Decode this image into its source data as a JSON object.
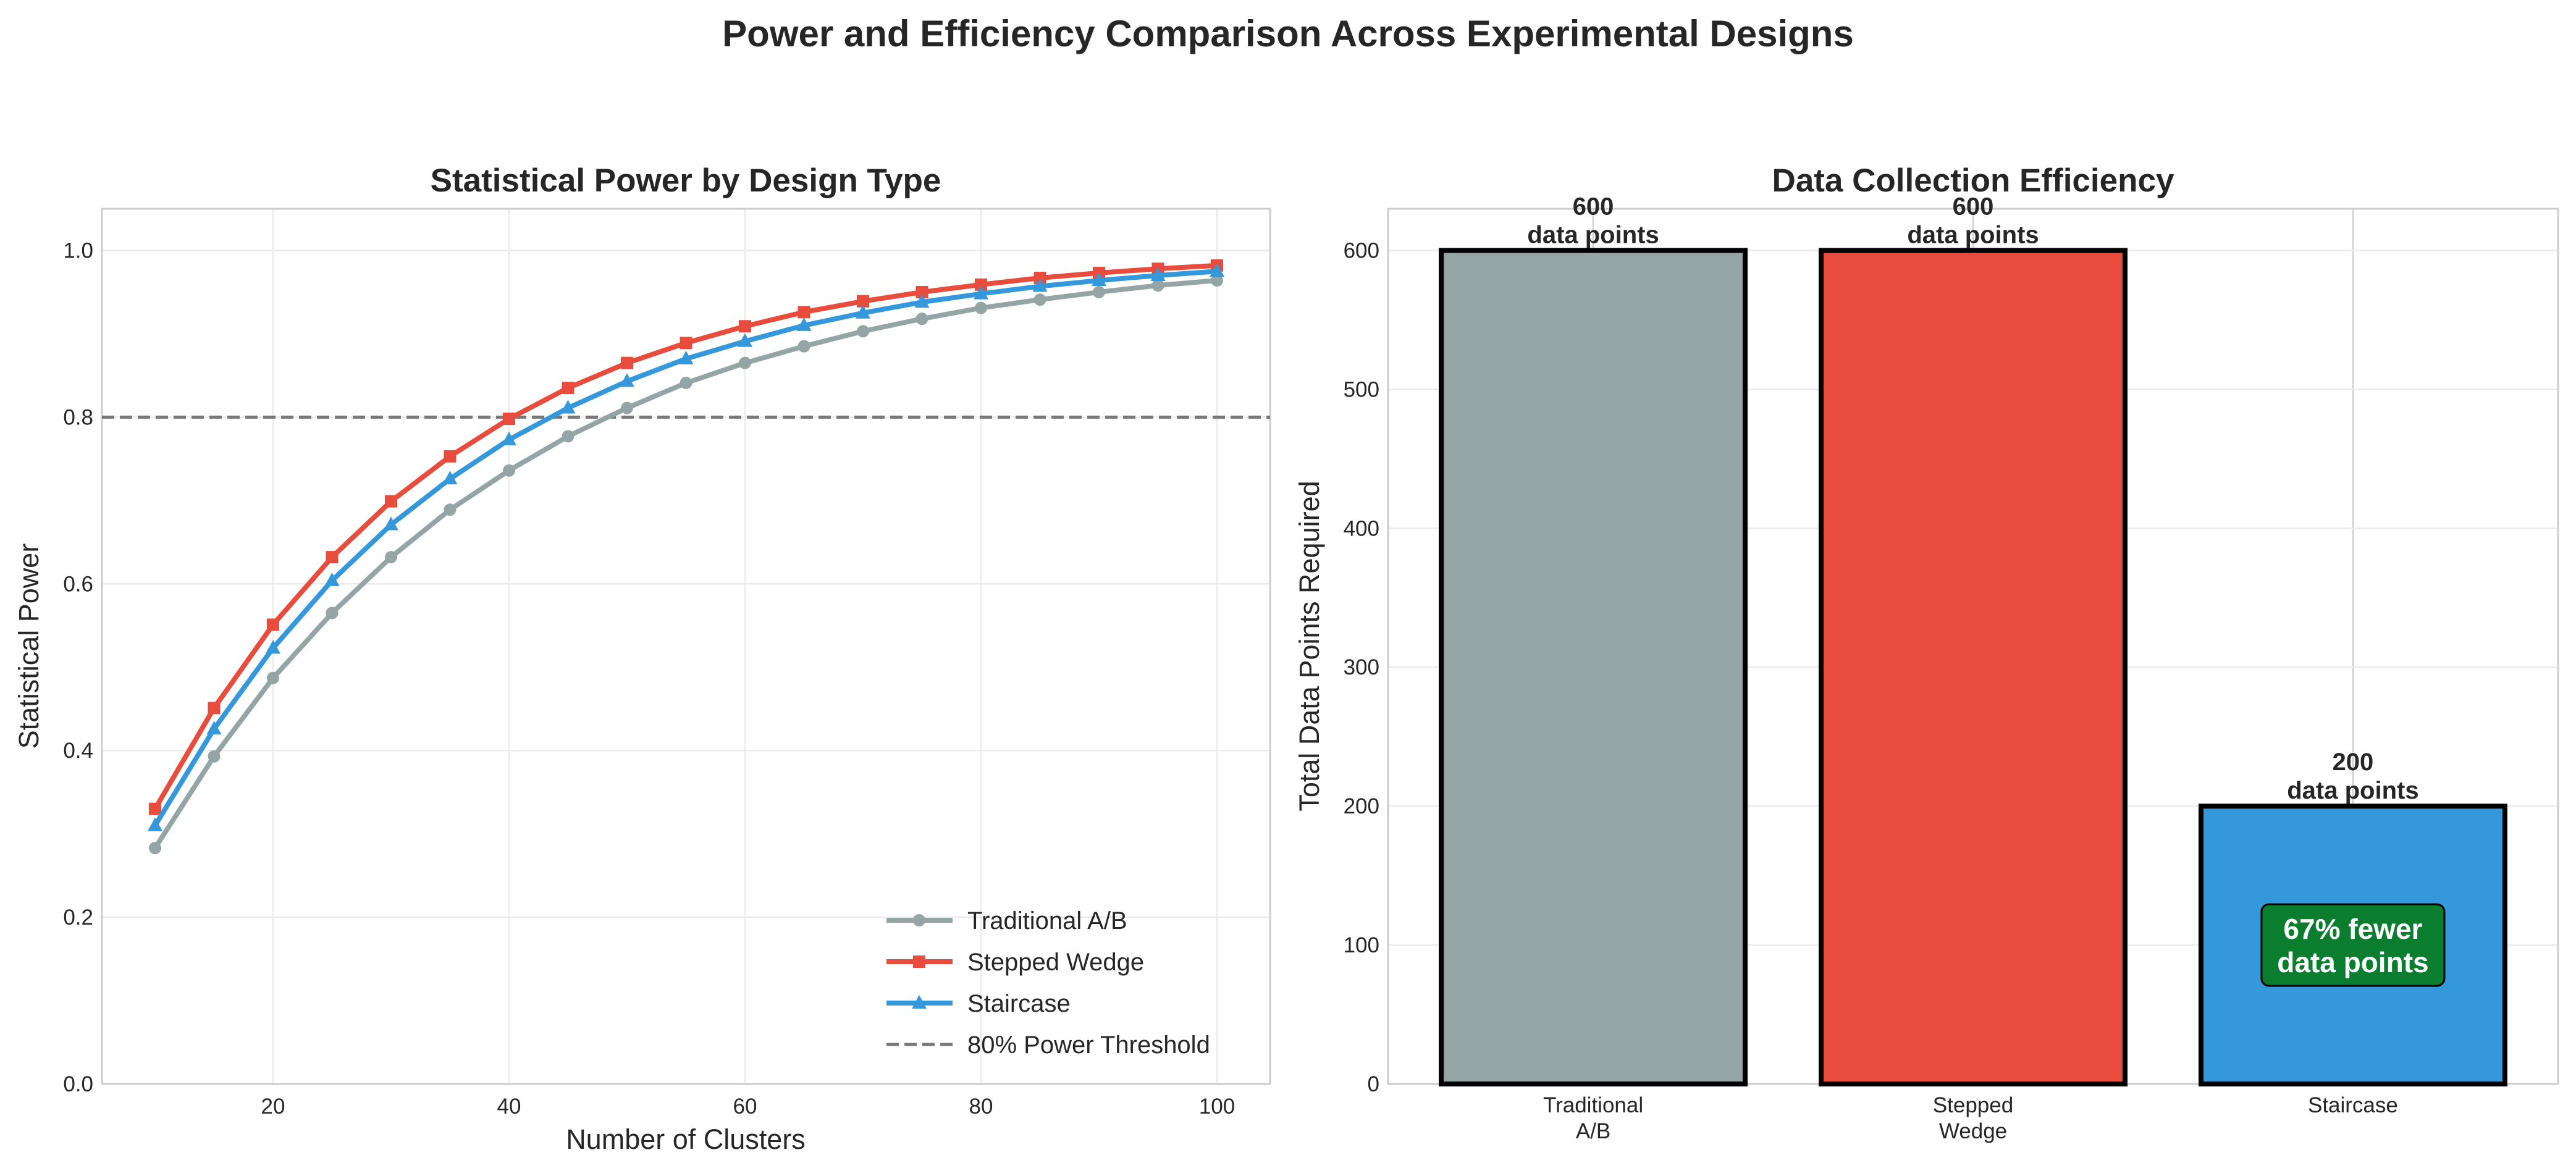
{
  "suptitle": "Power and Efficiency Comparison Across Experimental Designs",
  "chart_data": [
    {
      "type": "line",
      "title": "Statistical Power by Design Type",
      "xlabel": "Number of Clusters",
      "ylabel": "Statistical Power",
      "xlim": [
        5.5,
        104.5
      ],
      "ylim": [
        0,
        1.05
      ],
      "xticks": [
        20,
        40,
        60,
        80,
        100
      ],
      "yticks": [
        0.0,
        0.2,
        0.4,
        0.6,
        0.8,
        1.0
      ],
      "ytick_labels": [
        "0.0",
        "0.2",
        "0.4",
        "0.6",
        "0.8",
        "1.0"
      ],
      "grid": true,
      "legend_position": "lower right",
      "x": [
        10,
        15,
        20,
        25,
        30,
        35,
        40,
        45,
        50,
        55,
        60,
        65,
        70,
        75,
        80,
        85,
        90,
        95,
        100
      ],
      "series": [
        {
          "name": "Traditional A/B",
          "color": "#95a5a6",
          "marker": "circle",
          "values": [
            0.283,
            0.393,
            0.487,
            0.565,
            0.632,
            0.689,
            0.736,
            0.777,
            0.811,
            0.841,
            0.865,
            0.885,
            0.903,
            0.918,
            0.931,
            0.941,
            0.95,
            0.958,
            0.964
          ]
        },
        {
          "name": "Stepped Wedge",
          "color": "#e74c3c",
          "marker": "square",
          "values": [
            0.33,
            0.451,
            0.551,
            0.632,
            0.699,
            0.753,
            0.798,
            0.835,
            0.865,
            0.889,
            0.909,
            0.926,
            0.939,
            0.95,
            0.959,
            0.967,
            0.973,
            0.978,
            0.982
          ]
        },
        {
          "name": "Staircase",
          "color": "#3498db",
          "marker": "triangle",
          "values": [
            0.31,
            0.426,
            0.523,
            0.604,
            0.671,
            0.726,
            0.773,
            0.811,
            0.843,
            0.87,
            0.891,
            0.91,
            0.925,
            0.938,
            0.948,
            0.957,
            0.964,
            0.97,
            0.975
          ]
        }
      ],
      "reference_line": {
        "name": "80% Power Threshold",
        "y": 0.8,
        "color": "#777777",
        "style": "dashed"
      }
    },
    {
      "type": "bar",
      "title": "Data Collection Efficiency",
      "xlabel": "",
      "ylabel": "Total Data Points Required",
      "ylim": [
        0,
        630
      ],
      "yticks": [
        0,
        100,
        200,
        300,
        400,
        500,
        600
      ],
      "grid": true,
      "categories": [
        [
          "Traditional",
          "A/B"
        ],
        [
          "Stepped",
          "Wedge"
        ],
        [
          "Staircase"
        ]
      ],
      "values": [
        600,
        600,
        200
      ],
      "colors": [
        "#95a5a6",
        "#e74c3c",
        "#3498db"
      ],
      "data_labels": [
        [
          "600",
          "data points"
        ],
        [
          "600",
          "data points"
        ],
        [
          "200",
          "data points"
        ]
      ],
      "annotation": {
        "lines": [
          "67% fewer",
          "data points"
        ],
        "box_color": "#0b7d2e"
      }
    }
  ]
}
